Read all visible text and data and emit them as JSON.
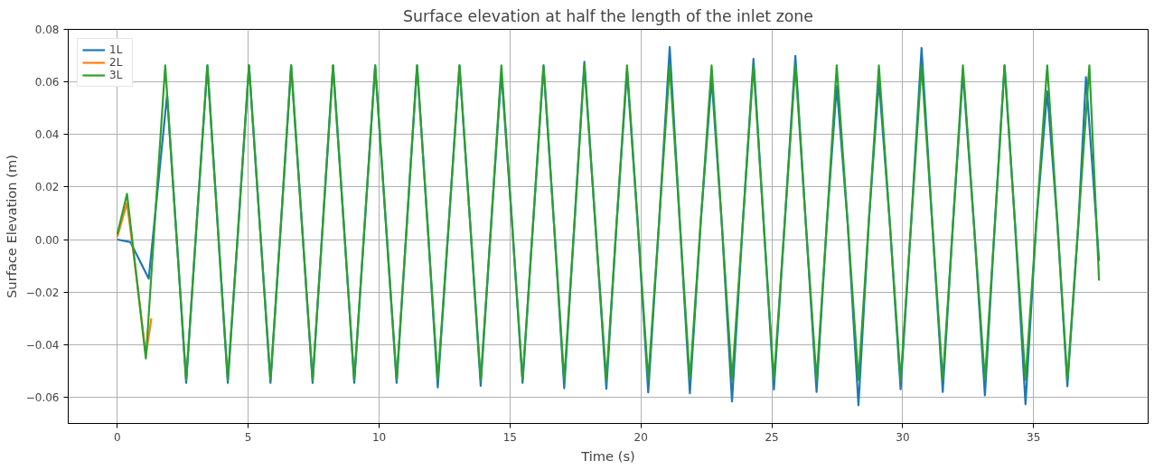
{
  "chart_data": {
    "type": "line",
    "title": "Surface elevation at half the length of the inlet zone",
    "xlabel": "Time (s)",
    "ylabel": "Surface Elevation (m)",
    "xlim": [
      -1.875,
      39.375
    ],
    "ylim": [
      -0.07,
      0.08
    ],
    "xticks": [
      0,
      5,
      10,
      15,
      20,
      25,
      30,
      35
    ],
    "yticks": [
      {
        "value": -0.06,
        "label": "−0.06"
      },
      {
        "value": -0.04,
        "label": "−0.04"
      },
      {
        "value": -0.02,
        "label": "−0.02"
      },
      {
        "value": 0,
        "label": "0.00"
      },
      {
        "value": 0.02,
        "label": "0.02"
      },
      {
        "value": 0.04,
        "label": "0.04"
      },
      {
        "value": 0.06,
        "label": "0.06"
      },
      {
        "value": 0.08,
        "label": "0.08"
      }
    ],
    "grid": true,
    "legend": "top left",
    "line_style": "solid",
    "marker": "none",
    "series": [
      {
        "name": "1L",
        "color": "#1f77b4",
        "x": [
          0,
          0.5,
          1.2,
          1.55,
          1.9,
          2.27,
          2.63,
          3.03,
          3.44,
          3.83,
          4.22,
          4.63,
          5.03,
          5.44,
          5.85,
          6.25,
          6.64,
          7.05,
          7.46,
          7.85,
          8.24,
          8.65,
          9.05,
          9.45,
          9.85,
          10.26,
          10.67,
          11.06,
          11.45,
          11.85,
          12.24,
          12.66,
          13.07,
          13.48,
          13.88,
          14.28,
          14.67,
          15.08,
          15.48,
          15.88,
          16.28,
          16.68,
          17.07,
          17.46,
          17.84,
          18.26,
          18.68,
          19.07,
          19.47,
          19.88,
          20.28,
          20.69,
          21.1,
          21.49,
          21.87,
          22.28,
          22.7,
          23.09,
          23.48,
          23.89,
          24.3,
          24.69,
          25.08,
          25.49,
          25.9,
          26.3,
          26.71,
          27.1,
          27.48,
          27.9,
          28.31,
          28.7,
          29.09,
          29.51,
          29.92,
          30.32,
          30.72,
          31.13,
          31.53,
          31.92,
          32.3,
          32.72,
          33.14,
          33.52,
          33.89,
          34.29,
          34.69,
          35.1,
          35.52,
          35.91,
          36.29,
          36.71,
          37.0,
          37.5
        ],
        "values": [
          0,
          -0.001,
          -0.0149,
          0.02,
          0.055,
          0.0,
          -0.0546,
          0.006,
          0.0663,
          0.006,
          -0.0546,
          0.006,
          0.0663,
          0.006,
          -0.0546,
          0.006,
          0.0663,
          0.006,
          -0.0546,
          0.006,
          0.0663,
          0.006,
          -0.0546,
          0.006,
          0.0663,
          0.006,
          -0.0546,
          0.006,
          0.0663,
          0.006,
          -0.0563,
          0.006,
          0.0663,
          0.006,
          -0.0557,
          0.006,
          0.0635,
          0.006,
          -0.0546,
          0.006,
          0.0663,
          0.006,
          -0.0566,
          0.006,
          0.0677,
          0.006,
          -0.0568,
          0.006,
          0.064,
          0.006,
          -0.0582,
          0.006,
          0.0733,
          0.006,
          -0.0585,
          0.006,
          0.0613,
          0.006,
          -0.0616,
          0.006,
          0.0688,
          0.006,
          -0.0571,
          0.006,
          0.0699,
          0.006,
          -0.058,
          0.006,
          0.0584,
          0.006,
          -0.0631,
          0.006,
          0.0604,
          0.006,
          -0.057,
          0.006,
          0.0729,
          0.006,
          -0.058,
          0.006,
          0.0635,
          0.006,
          -0.0593,
          0.006,
          0.0663,
          0.006,
          -0.0627,
          0.006,
          0.0564,
          0.006,
          -0.0559,
          0.006,
          0.0618,
          -0.0081
        ]
      },
      {
        "name": "2L",
        "color": "#ff7f0e",
        "x": [
          0,
          0.2,
          0.37,
          0.73,
          1.09,
          1.3
        ],
        "values": [
          0.001,
          0.008,
          0.0139,
          -0.014,
          -0.0441,
          -0.03
        ]
      },
      {
        "name": "3L",
        "color": "#2ca02c",
        "x": [
          0,
          0.37,
          0.73,
          1.09,
          1.46,
          1.83,
          2.23,
          2.63,
          3.03,
          3.44,
          3.83,
          4.22,
          4.63,
          5.03,
          5.44,
          5.85,
          6.25,
          6.64,
          7.05,
          7.46,
          7.85,
          8.24,
          8.65,
          9.05,
          9.45,
          9.85,
          10.26,
          10.67,
          11.06,
          11.45,
          11.85,
          12.24,
          12.66,
          13.07,
          13.48,
          13.88,
          14.28,
          14.67,
          15.08,
          15.48,
          15.88,
          16.28,
          16.68,
          17.07,
          17.46,
          17.84,
          18.26,
          18.68,
          19.07,
          19.47,
          19.88,
          20.28,
          20.69,
          21.1,
          21.49,
          21.87,
          22.28,
          22.7,
          23.09,
          23.48,
          23.89,
          24.3,
          24.69,
          25.08,
          25.49,
          25.9,
          26.3,
          26.71,
          27.1,
          27.48,
          27.9,
          28.31,
          28.7,
          29.09,
          29.51,
          29.92,
          30.32,
          30.72,
          31.13,
          31.53,
          31.92,
          32.3,
          32.72,
          33.14,
          33.52,
          33.89,
          34.29,
          34.69,
          35.1,
          35.52,
          35.91,
          36.29,
          36.71,
          37.13,
          37.5
        ],
        "values": [
          0.002,
          0.0174,
          -0.014,
          -0.0453,
          0.011,
          0.0663,
          0.006,
          -0.0535,
          0.006,
          0.0663,
          0.006,
          -0.0535,
          0.006,
          0.0663,
          0.006,
          -0.0535,
          0.006,
          0.0663,
          0.006,
          -0.0535,
          0.006,
          0.0663,
          0.006,
          -0.0535,
          0.006,
          0.0663,
          0.006,
          -0.0535,
          0.006,
          0.0663,
          0.006,
          -0.0535,
          0.006,
          0.0663,
          0.006,
          -0.0535,
          0.006,
          0.0663,
          0.006,
          -0.0535,
          0.006,
          0.0663,
          0.006,
          -0.0535,
          0.006,
          0.0663,
          0.006,
          -0.0535,
          0.006,
          0.0663,
          0.006,
          -0.0535,
          0.006,
          0.0663,
          0.006,
          -0.0535,
          0.006,
          0.0663,
          0.006,
          -0.0535,
          0.006,
          0.0663,
          0.006,
          -0.0535,
          0.006,
          0.0663,
          0.006,
          -0.0535,
          0.006,
          0.0663,
          0.006,
          -0.0535,
          0.006,
          0.0663,
          0.006,
          -0.0535,
          0.006,
          0.0663,
          0.006,
          -0.0535,
          0.006,
          0.0663,
          0.006,
          -0.0535,
          0.006,
          0.0663,
          0.006,
          -0.0535,
          0.006,
          0.0663,
          0.006,
          -0.0535,
          0.006,
          0.0663,
          -0.0156
        ]
      }
    ]
  }
}
